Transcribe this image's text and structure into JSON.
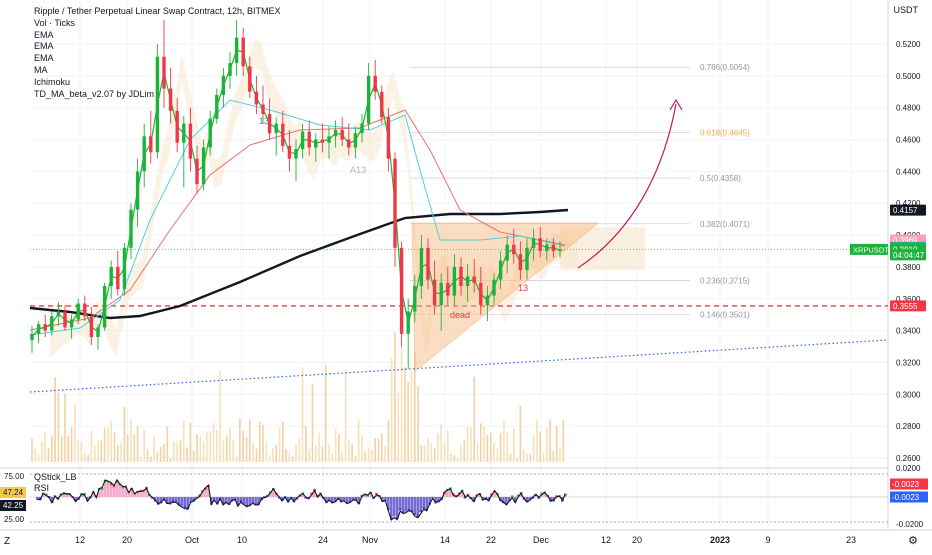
{
  "title": "Ripple / Tether Perpetual Linear Swap Contract, 12h, BITMEX",
  "indicators": [
    "Vol · Ticks",
    "EMA",
    "EMA",
    "EMA",
    "MA",
    "Ichimoku",
    "TD_MA_beta_v2.07 by JDLim"
  ],
  "currency_label": "USDT",
  "oscillator": {
    "name": "QStick_LB",
    "rsi_label": "RSI",
    "left_ticks": [
      "75.00",
      "25.00"
    ],
    "left_badges": [
      {
        "label": "47.24",
        "color": "#f5c84b",
        "text_color": "#131722"
      },
      {
        "label": "42.25",
        "color": "#131722",
        "text_color": "#ffffff"
      }
    ],
    "right_ticks": [
      "0.0200",
      "-0.0200"
    ],
    "right_badges": [
      {
        "label": "-0.0023",
        "color": "#f23645"
      },
      {
        "label": "-0.0023",
        "color": "#2962ff"
      }
    ]
  },
  "price_axis": {
    "ticks": [
      "0.5200",
      "0.5000",
      "0.4800",
      "0.4600",
      "0.4400",
      "0.4200",
      "0.4000",
      "0.3920",
      "0.3800",
      "0.3600",
      "0.3400",
      "0.3200",
      "0.3000",
      "0.2800",
      "0.2600"
    ],
    "badges": [
      {
        "label": "0.4157",
        "value": 0.4157,
        "color": "#131722"
      },
      {
        "label": "0.3969",
        "value": 0.3969,
        "color": "#f7a1b3"
      },
      {
        "label": "0.3923",
        "value": 0.3923,
        "color": "#22ab94"
      },
      {
        "label": "0.3910",
        "value": 0.391,
        "color": "#1db33a"
      },
      {
        "label": "04:04:47",
        "value": 0.3876,
        "color": "#1db33a"
      },
      {
        "label": "0.3555",
        "value": 0.3555,
        "color": "#f23645"
      }
    ],
    "symbol_tag": "XRPUSDT"
  },
  "time_axis": {
    "labels": [
      "12",
      "20",
      "Oct",
      "10",
      "24",
      "Nov",
      "14",
      "22",
      "Dec",
      "12",
      "20",
      "2023",
      "9",
      "23"
    ]
  },
  "corner": {
    "left": "Z",
    "right": "⚙"
  },
  "chart_data": {
    "type": "candlestick",
    "symbol": "XRPUSDT",
    "interval": "12h",
    "yaxis_range": [
      0.255,
      0.535
    ],
    "ohlc_approx": [
      [
        0.334,
        0.343,
        0.326,
        0.338
      ],
      [
        0.338,
        0.346,
        0.332,
        0.344
      ],
      [
        0.344,
        0.35,
        0.336,
        0.34
      ],
      [
        0.34,
        0.352,
        0.337,
        0.349
      ],
      [
        0.349,
        0.358,
        0.343,
        0.352
      ],
      [
        0.352,
        0.356,
        0.34,
        0.342
      ],
      [
        0.342,
        0.35,
        0.335,
        0.347
      ],
      [
        0.347,
        0.36,
        0.344,
        0.357
      ],
      [
        0.357,
        0.362,
        0.346,
        0.349
      ],
      [
        0.349,
        0.355,
        0.331,
        0.336
      ],
      [
        0.336,
        0.344,
        0.328,
        0.342
      ],
      [
        0.342,
        0.37,
        0.34,
        0.368
      ],
      [
        0.368,
        0.384,
        0.36,
        0.38
      ],
      [
        0.38,
        0.39,
        0.362,
        0.366
      ],
      [
        0.366,
        0.395,
        0.362,
        0.392
      ],
      [
        0.392,
        0.42,
        0.385,
        0.416
      ],
      [
        0.416,
        0.448,
        0.405,
        0.44
      ],
      [
        0.44,
        0.47,
        0.43,
        0.462
      ],
      [
        0.462,
        0.478,
        0.445,
        0.452
      ],
      [
        0.452,
        0.52,
        0.448,
        0.512
      ],
      [
        0.512,
        0.535,
        0.48,
        0.492
      ],
      [
        0.492,
        0.505,
        0.47,
        0.478
      ],
      [
        0.478,
        0.486,
        0.452,
        0.458
      ],
      [
        0.458,
        0.475,
        0.43,
        0.47
      ],
      [
        0.47,
        0.48,
        0.44,
        0.448
      ],
      [
        0.448,
        0.456,
        0.426,
        0.432
      ],
      [
        0.432,
        0.46,
        0.428,
        0.455
      ],
      [
        0.455,
        0.478,
        0.45,
        0.473
      ],
      [
        0.473,
        0.492,
        0.47,
        0.488
      ],
      [
        0.488,
        0.505,
        0.48,
        0.5
      ],
      [
        0.5,
        0.515,
        0.492,
        0.508
      ],
      [
        0.508,
        0.535,
        0.5,
        0.524
      ],
      [
        0.524,
        0.53,
        0.5,
        0.506
      ],
      [
        0.506,
        0.512,
        0.486,
        0.49
      ],
      [
        0.49,
        0.5,
        0.476,
        0.482
      ],
      [
        0.482,
        0.494,
        0.47,
        0.476
      ],
      [
        0.476,
        0.486,
        0.46,
        0.464
      ],
      [
        0.464,
        0.474,
        0.45,
        0.47
      ],
      [
        0.47,
        0.478,
        0.452,
        0.456
      ],
      [
        0.456,
        0.466,
        0.44,
        0.448
      ],
      [
        0.448,
        0.46,
        0.434,
        0.454
      ],
      [
        0.454,
        0.47,
        0.448,
        0.465
      ],
      [
        0.465,
        0.472,
        0.45,
        0.455
      ],
      [
        0.455,
        0.464,
        0.446,
        0.46
      ],
      [
        0.46,
        0.47,
        0.452,
        0.458
      ],
      [
        0.458,
        0.468,
        0.448,
        0.462
      ],
      [
        0.462,
        0.472,
        0.455,
        0.466
      ],
      [
        0.466,
        0.474,
        0.456,
        0.46
      ],
      [
        0.46,
        0.47,
        0.45,
        0.455
      ],
      [
        0.455,
        0.468,
        0.448,
        0.464
      ],
      [
        0.464,
        0.476,
        0.458,
        0.47
      ],
      [
        0.47,
        0.508,
        0.466,
        0.5
      ],
      [
        0.5,
        0.51,
        0.485,
        0.49
      ],
      [
        0.49,
        0.494,
        0.47,
        0.474
      ],
      [
        0.474,
        0.48,
        0.44,
        0.448
      ],
      [
        0.448,
        0.452,
        0.38,
        0.392
      ],
      [
        0.392,
        0.396,
        0.33,
        0.338
      ],
      [
        0.338,
        0.36,
        0.316,
        0.352
      ],
      [
        0.352,
        0.375,
        0.345,
        0.368
      ],
      [
        0.368,
        0.4,
        0.36,
        0.392
      ],
      [
        0.392,
        0.398,
        0.366,
        0.372
      ],
      [
        0.372,
        0.384,
        0.35,
        0.356
      ],
      [
        0.356,
        0.376,
        0.34,
        0.37
      ],
      [
        0.37,
        0.38,
        0.356,
        0.362
      ],
      [
        0.362,
        0.388,
        0.356,
        0.38
      ],
      [
        0.38,
        0.386,
        0.362,
        0.368
      ],
      [
        0.368,
        0.382,
        0.358,
        0.374
      ],
      [
        0.374,
        0.385,
        0.364,
        0.37
      ],
      [
        0.37,
        0.38,
        0.35,
        0.356
      ],
      [
        0.356,
        0.368,
        0.346,
        0.362
      ],
      [
        0.362,
        0.376,
        0.356,
        0.372
      ],
      [
        0.372,
        0.39,
        0.366,
        0.384
      ],
      [
        0.384,
        0.4,
        0.376,
        0.394
      ],
      [
        0.394,
        0.404,
        0.382,
        0.388
      ],
      [
        0.388,
        0.396,
        0.372,
        0.378
      ],
      [
        0.378,
        0.398,
        0.372,
        0.392
      ],
      [
        0.392,
        0.404,
        0.384,
        0.398
      ],
      [
        0.398,
        0.405,
        0.386,
        0.39
      ],
      [
        0.39,
        0.398,
        0.384,
        0.394
      ],
      [
        0.394,
        0.398,
        0.386,
        0.39
      ],
      [
        0.39,
        0.396,
        0.386,
        0.391
      ]
    ],
    "volume_bars": "approx-spiky",
    "lines": [
      {
        "name": "MA",
        "color": "#131722",
        "style": "solid"
      },
      {
        "name": "EMA",
        "color": "#e57373",
        "style": "solid"
      },
      {
        "name": "EMA",
        "color": "#4dd0e1",
        "style": "solid"
      }
    ],
    "annotations": [
      {
        "type": "text",
        "label": "dead",
        "color": "#f23645"
      },
      {
        "type": "text",
        "label": "13",
        "color": "#f23645"
      },
      {
        "type": "text",
        "label": "13",
        "color": "#22ab94"
      },
      {
        "type": "text",
        "label": "A13",
        "color": "#b2b5be"
      },
      {
        "type": "hline",
        "value": 0.3555,
        "color": "#f23645",
        "style": "dashed"
      }
    ],
    "fibonacci": [
      {
        "label": "0.786(0.5054)",
        "value": 0.5054
      },
      {
        "label": "0.618(0.4645)",
        "value": 0.4645
      },
      {
        "label": "0.5(0.4358)",
        "value": 0.4358
      },
      {
        "label": "0.382(0.4071)",
        "value": 0.4071
      },
      {
        "label": "0.236(0.3715)",
        "value": 0.3715
      },
      {
        "label": "0.146(0.3501)",
        "value": 0.3501
      }
    ]
  }
}
